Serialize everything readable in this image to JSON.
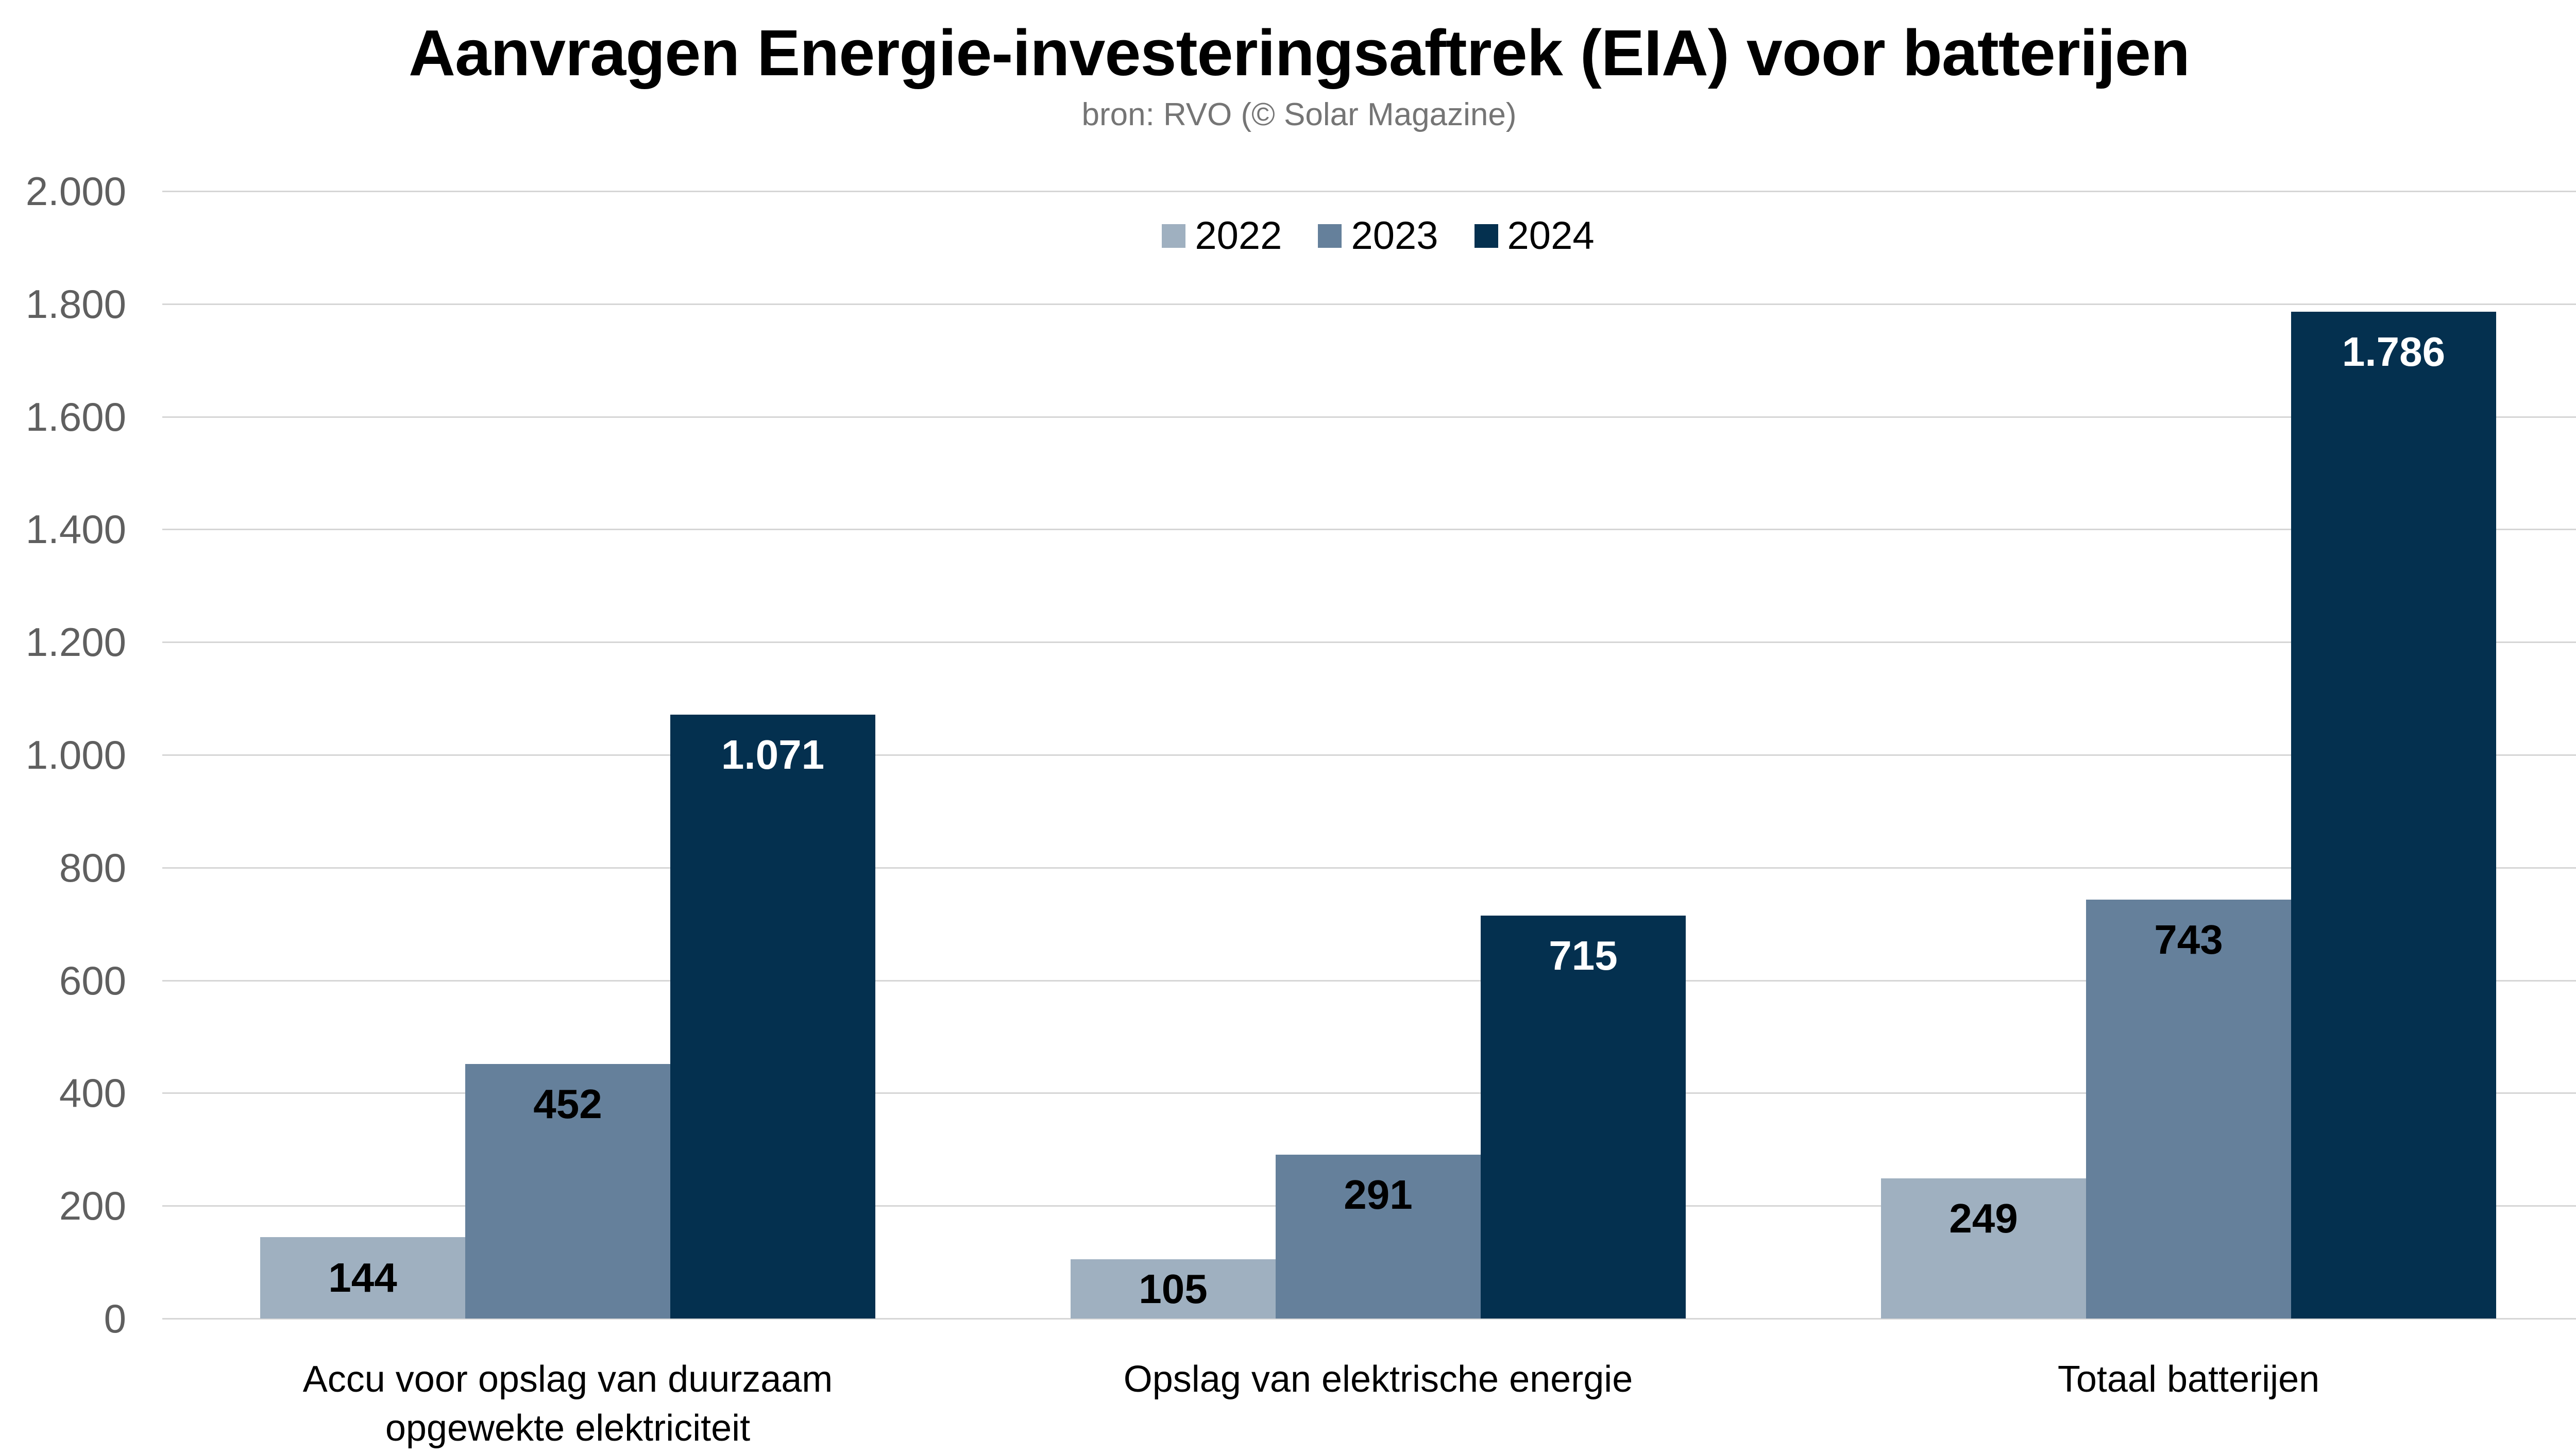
{
  "header": {
    "title": "Aanvragen Energie-investeringsaftrek (EIA) voor batterijen",
    "subtitle": "bron: RVO (© Solar Magazine)"
  },
  "chart_data": {
    "type": "bar",
    "title": "Aanvragen Energie-investeringsaftrek (EIA) voor batterijen",
    "subtitle": "bron: RVO (© Solar Magazine)",
    "categories": [
      "Accu voor opslag van duurzaam opgewekte elektriciteit",
      "Opslag van elektrische energie",
      "Totaal batterijen"
    ],
    "series": [
      {
        "name": "2022",
        "color": "#9fb0c0",
        "label_color": "#000000",
        "values": [
          144,
          105,
          249
        ],
        "value_labels": [
          "144",
          "105",
          "249"
        ]
      },
      {
        "name": "2023",
        "color": "#65809b",
        "label_color": "#000000",
        "values": [
          452,
          291,
          743
        ],
        "value_labels": [
          "452",
          "291",
          "743"
        ]
      },
      {
        "name": "2024",
        "color": "#04304f",
        "label_color": "#ffffff",
        "values": [
          1071,
          715,
          1786
        ],
        "value_labels": [
          "1.071",
          "715",
          "1.786"
        ]
      }
    ],
    "y_axis": {
      "min": 0,
      "max": 2000,
      "step": 200,
      "ticks": [
        "2.000",
        "1.800",
        "1.600",
        "1.400",
        "1.200",
        "1.000",
        "800",
        "600",
        "400",
        "200",
        "0"
      ]
    },
    "grid": "horizontal",
    "legend_position": "top-center",
    "number_format": "thousands-dot",
    "xlabel": "",
    "ylabel": ""
  },
  "colors": {
    "background": "#ffffff",
    "title": "#000000",
    "subtitle": "#757575",
    "tick_label": "#5f5f5f",
    "gridline": "#d6d6d6",
    "category_label": "#000000",
    "series_2022": "#9fb0c0",
    "series_2023": "#65809b",
    "series_2024": "#04304f"
  }
}
